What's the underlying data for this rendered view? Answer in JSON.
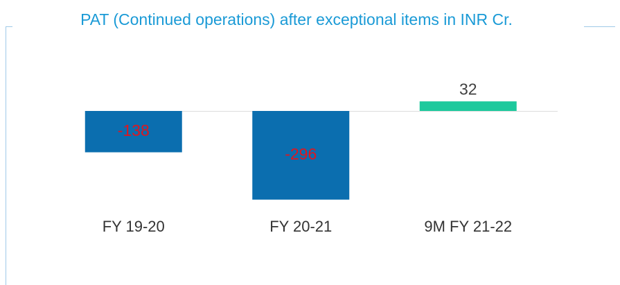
{
  "chart_data": {
    "type": "bar",
    "title": "PAT (Continued operations) after exceptional items in INR Cr.",
    "categories": [
      "FY 19-20",
      "FY 20-21",
      "9M FY 21-22"
    ],
    "values": [
      -138,
      -296,
      32
    ],
    "colors": [
      "#0b6eaf",
      "#0b6eaf",
      "#1dc99d"
    ],
    "label_colors": [
      "#e0161e",
      "#e0161e",
      "#404040"
    ]
  }
}
